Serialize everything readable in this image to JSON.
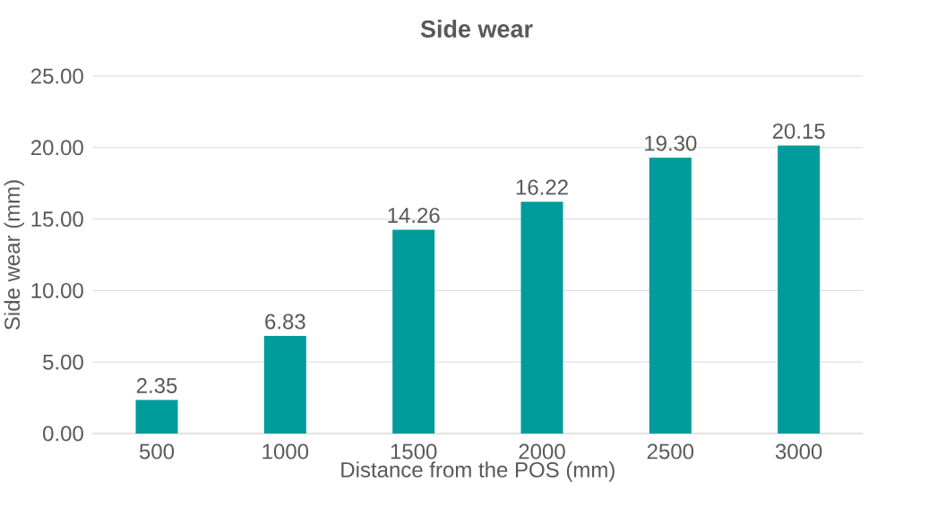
{
  "chart_data": {
    "type": "bar",
    "title": "Side wear",
    "xlabel": "Distance from the POS (mm)",
    "ylabel": "Side wear (mm)",
    "categories": [
      "500",
      "1000",
      "1500",
      "2000",
      "2500",
      "3000"
    ],
    "values": [
      2.35,
      6.83,
      14.26,
      16.22,
      19.3,
      20.15
    ],
    "value_labels": [
      "2.35",
      "6.83",
      "14.26",
      "16.22",
      "19.30",
      "20.15"
    ],
    "color": "#009b9b",
    "ylim": [
      0,
      25
    ],
    "yticks": [
      {
        "value": 0,
        "label": "0.00"
      },
      {
        "value": 5,
        "label": "5.00"
      },
      {
        "value": 10,
        "label": "10.00"
      },
      {
        "value": 15,
        "label": "15.00"
      },
      {
        "value": 20,
        "label": "20.00"
      },
      {
        "value": 25,
        "label": "25.00"
      }
    ],
    "grid": "y"
  }
}
